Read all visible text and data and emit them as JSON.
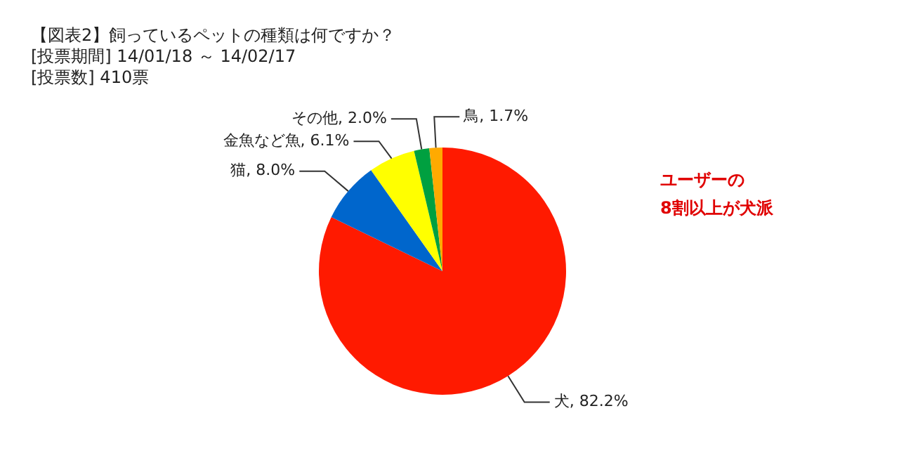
{
  "chart_data": {
    "type": "pie",
    "title": "【図表2】飼っているペットの種類は何ですか？",
    "subtitle": "[投票期間] 14/01/18 ～ 14/02/17\n[投票数] 410票",
    "categories": [
      "犬",
      "猫",
      "金魚など魚",
      "その他",
      "鳥"
    ],
    "values": [
      82.2,
      8.0,
      6.1,
      2.0,
      1.7
    ],
    "value_labels": [
      "82.2%",
      "8.0%",
      "6.1%",
      "2.0%",
      "1.7%"
    ],
    "colors": [
      "#ff1a00",
      "#0066cc",
      "#ffff00",
      "#00a040",
      "#ffaa00"
    ],
    "annotations": [
      "ユーザーの\n8割以上が犬派"
    ],
    "legend": false
  }
}
